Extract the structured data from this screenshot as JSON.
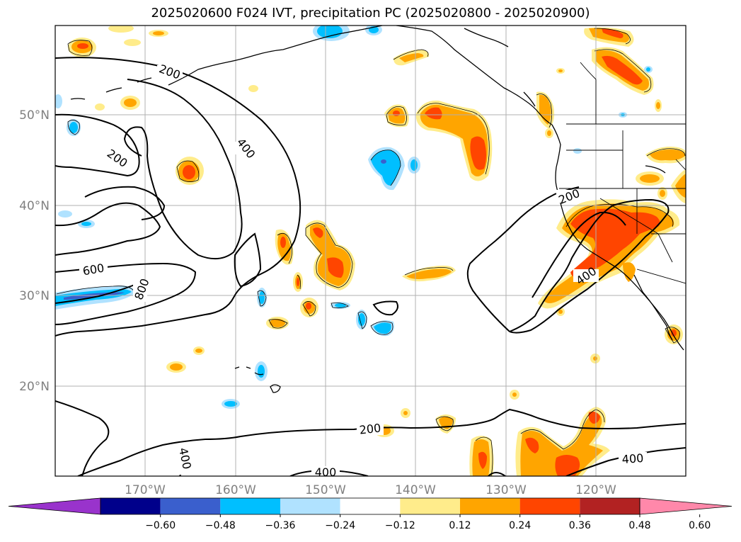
{
  "title": "2025020600 F024 IVT, precipitation PC (2025020800 - 2025020900)",
  "lat_labels": [
    "50°N",
    "40°N",
    "30°N",
    "20°N"
  ],
  "lon_labels": [
    "170°W",
    "160°W",
    "150°W",
    "140°W",
    "130°W",
    "120°W"
  ],
  "colorbar": {
    "ticks": [
      "−0.60",
      "−0.48",
      "−0.36",
      "−0.24",
      "−0.12",
      "0.12",
      "0.24",
      "0.36",
      "0.48",
      "0.60"
    ],
    "colors": [
      "#9933cc",
      "#00008b",
      "#3a5fcd",
      "#00bfff",
      "#b0e2ff",
      "#ffffff",
      "#ffec8b",
      "#ffa500",
      "#ff4500",
      "#b22222",
      "#ff88aa"
    ]
  },
  "contour_labels": [
    "200",
    "200",
    "400",
    "600",
    "800",
    "200",
    "400",
    "200",
    "400",
    "400",
    "400"
  ],
  "colors": {
    "pc_light_yellow": "#ffec8b",
    "pc_orange": "#ffa500",
    "pc_red_orange": "#ff4500",
    "pc_light_blue": "#b0e2ff",
    "pc_deep_sky_blue": "#00bfff",
    "pc_royal_blue": "#3a5fcd",
    "pc_purple": "#9933cc"
  }
}
